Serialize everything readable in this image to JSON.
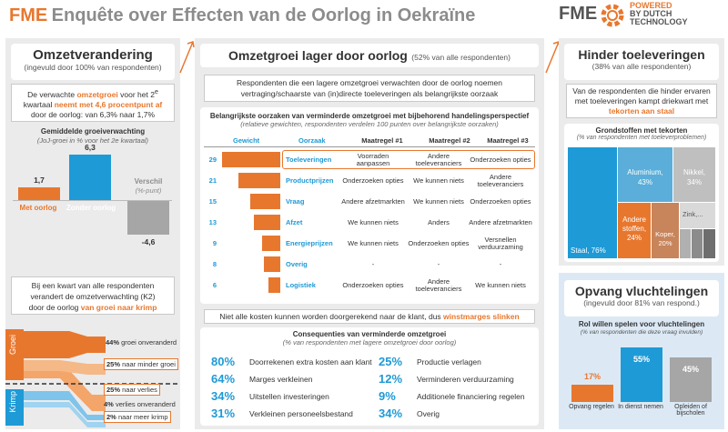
{
  "header": {
    "brand": "FME",
    "title": "Enquête over Effecten van de Oorlog in Oekraïne",
    "logo_main": "FME",
    "logo_tag1": "POWERED",
    "logo_tag2": "BY DUTCH",
    "logo_tag3": "TECHNOLOGY"
  },
  "left": {
    "title": "Omzetverandering",
    "subtitle": "(ingevuld door 100% van respondenten)",
    "intro_a": "De verwachte ",
    "intro_b": "omzetgroei",
    "intro_c": " voor het 2",
    "intro_sup": "e",
    "intro_d": "kwartaal ",
    "intro_e": "neemt met 4,6 procentpunt af",
    "intro_f": " door de oorlog: van 6,3% naar 1,7%",
    "chart_title": "Gemiddelde groeiverwachting",
    "chart_sub": "(JoJ-groei in % voor het 2e kwartaal)",
    "kwart_a": "Bij een kwart van alle respondenten",
    "kwart_b": "verandert de omzetverwachting (K2)",
    "kwart_c": "door de oorlog ",
    "kwart_d": "van groei naar krimp",
    "label_groei": "Groei",
    "label_krimp": "Krimp",
    "flows": [
      {
        "pct": "44%",
        "text": "groei onveranderd"
      },
      {
        "pct": "25%",
        "text": "naar minder groei"
      },
      {
        "pct": "25%",
        "text": "naar verlies"
      },
      {
        "pct": "4%",
        "text": "verlies onveranderd"
      },
      {
        "pct": "2%",
        "text": "naar meer krimp"
      }
    ]
  },
  "chart_data": [
    {
      "type": "bar",
      "categories": [
        "Met oorlog",
        "Zonder oorlog",
        "Verschil"
      ],
      "values": [
        1.7,
        6.3,
        -4.6
      ],
      "value_labels": [
        "1,7",
        "6,3",
        "-4,6"
      ],
      "category_note": "(%-punt)",
      "colors": [
        "#e8772e",
        "#1e9ad6",
        "#a6a6a6"
      ]
    },
    {
      "type": "bar",
      "title": "Belangrijkste oorzaken van verminderde omzetgroei",
      "categories": [
        "Toeleveringen",
        "Productprijzen",
        "Vraag",
        "Afzet",
        "Energieprijzen",
        "Overig",
        "Logistiek"
      ],
      "values": [
        29,
        21,
        15,
        13,
        9,
        8,
        6
      ]
    },
    {
      "type": "heatmap",
      "title": "Grondstoffen met tekorten",
      "categories": [
        "Staal",
        "Aluminium",
        "Nikkel",
        "Andere stoffen",
        "Koper",
        "Zink"
      ],
      "values": [
        76,
        43,
        34,
        24,
        20,
        null
      ]
    },
    {
      "type": "bar",
      "title": "Rol willen spelen voor vluchtelingen",
      "categories": [
        "Opvang regelen",
        "In dienst nemen",
        "Opleiden of bijscholen"
      ],
      "values": [
        17,
        55,
        45
      ],
      "colors": [
        "#e8772e",
        "#1e9ad6",
        "#a6a6a6"
      ]
    }
  ],
  "middle": {
    "title": "Omzetgroei lager door oorlog",
    "title_note": "(52% van alle respondenten)",
    "intro": "Respondenten die een lagere omzetgroei verwachten door de oorlog noemen vertraging/schaarste van (in)directe toeleveringen als belangrijkste oorzaak",
    "table_title": "Belangrijkste oorzaken van verminderde omzetgroei met bijbehorend handelingsperspectief",
    "table_sub": "(relatieve gewichten, respondenten verdelen 100 punten over belangrijkste oorzaken)",
    "headers": [
      "Gewicht",
      "Oorzaak",
      "Maatregel #1",
      "Maatregel #2",
      "Maatregel #3"
    ],
    "rows": [
      {
        "w": "29",
        "cause": "Toeleveringen",
        "m1": "Voorraden aanpassen",
        "m2": "Andere toeleveranciers",
        "m3": "Onderzoeken opties"
      },
      {
        "w": "21",
        "cause": "Productprijzen",
        "m1": "Onderzoeken opties",
        "m2": "We kunnen niets",
        "m3": "Andere toeleveranciers"
      },
      {
        "w": "15",
        "cause": "Vraag",
        "m1": "Andere afzetmarkten",
        "m2": "We kunnen niets",
        "m3": "Onderzoeken opties"
      },
      {
        "w": "13",
        "cause": "Afzet",
        "m1": "We kunnen niets",
        "m2": "Anders",
        "m3": "Andere afzetmarkten"
      },
      {
        "w": "9",
        "cause": "Energieprijzen",
        "m1": "We kunnen niets",
        "m2": "Onderzoeken opties",
        "m3": "Versnellen verduurzaming"
      },
      {
        "w": "8",
        "cause": "Overig",
        "m1": "-",
        "m2": "-",
        "m3": "-"
      },
      {
        "w": "6",
        "cause": "Logistiek",
        "m1": "Onderzoeken opties",
        "m2": "Andere toeleveranciers",
        "m3": "We kunnen niets"
      }
    ],
    "margin_a": "Niet alle kosten kunnen worden doorgerekend naar de klant, dus ",
    "margin_b": "winstmarges slinken",
    "cons_title": "Consequenties van verminderde omzetgroei",
    "cons_sub": "(% van respondenten met lagere omzetgroei door oorlog)",
    "cons_left": [
      {
        "pct": "80%",
        "text": "Doorrekenen extra kosten aan klant"
      },
      {
        "pct": "64%",
        "text": "Marges verkleinen"
      },
      {
        "pct": "34%",
        "text": "Uitstellen investeringen"
      },
      {
        "pct": "31%",
        "text": "Verkleinen personeelsbestand"
      }
    ],
    "cons_right": [
      {
        "pct": "25%",
        "text": "Productie verlagen"
      },
      {
        "pct": "12%",
        "text": "Verminderen verduurzaming"
      },
      {
        "pct": "9%",
        "text": "Additionele financiering regelen"
      },
      {
        "pct": "34%",
        "text": "Overig"
      }
    ]
  },
  "right": {
    "title": "Hinder toeleveringen",
    "subtitle": "(38% van alle respondenten)",
    "intro_a": "Van de respondenten die hinder ervaren met toeleveringen kampt driekwart met ",
    "intro_b": "tekorten aan staal",
    "tm_title": "Grondstoffen met tekorten",
    "tm_sub": "(% van respondenten met toeleverproblemen)",
    "tm": {
      "staal": "Staal, 76%",
      "alu1": "Aluminium,",
      "alu2": "43%",
      "nik1": "Nikkel,",
      "nik2": "34%",
      "and1": "Andere",
      "and2": "stoffen,",
      "and3": "24%",
      "kop1": "Koper,",
      "kop2": "20%",
      "zink": "Zink,..."
    },
    "opvang_title": "Opvang vluchtelingen",
    "opvang_sub": "(ingevuld door 81% van respond.)",
    "rol_title": "Rol willen spelen voor vluchtelingen",
    "rol_sub": "(% van respondenten die deze vraag invulden)",
    "bars": [
      {
        "label": "Opvang regelen",
        "val": "17%"
      },
      {
        "label": "In dienst nemen",
        "val": "55%"
      },
      {
        "label": "Opleiden of bijscholen",
        "val": "45%"
      }
    ]
  },
  "colors": {
    "orange": "#e8772e",
    "blue": "#1e9ad6",
    "grey": "#a6a6a6",
    "panel": "#ebebeb"
  }
}
